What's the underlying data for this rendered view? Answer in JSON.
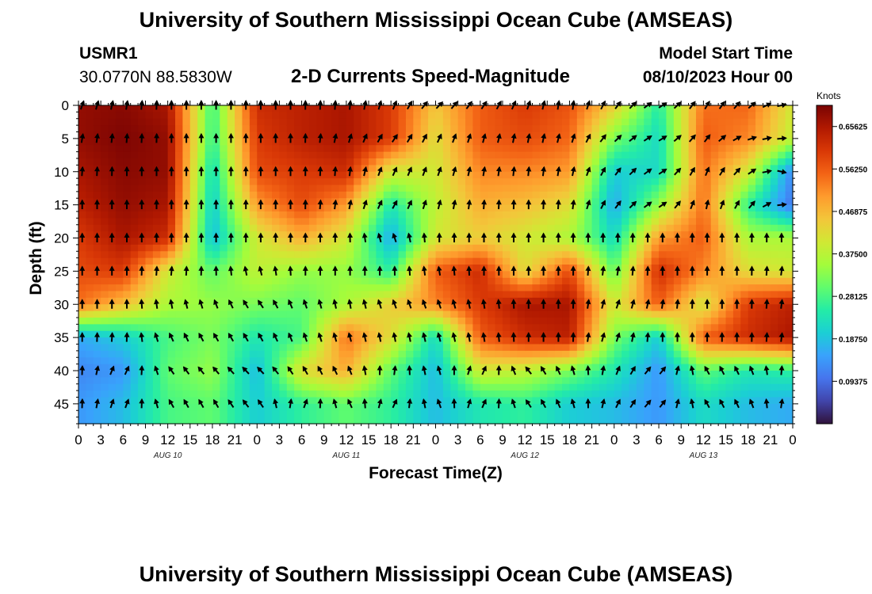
{
  "header": {
    "title": "University of Southern Mississippi Ocean Cube (AMSEAS)",
    "station_id": "USMR1",
    "coords": "30.0770N  88.5830W",
    "subtitle": "2-D Currents Speed-Magnitude",
    "model_start_label": "Model Start Time",
    "model_start_value": "08/10/2023 Hour 00"
  },
  "footer": {
    "title": "University of Southern Mississippi Ocean Cube (AMSEAS)"
  },
  "colors": {
    "palette": [
      "#30123b",
      "#4145ab",
      "#4675ed",
      "#39a2fc",
      "#1bcfd4",
      "#24eca6",
      "#61fc6c",
      "#a4fc3b",
      "#d1e834",
      "#f3c63a",
      "#fe9b2d",
      "#f36315",
      "#d93806",
      "#b11901",
      "#7a0403"
    ]
  },
  "chart_data": {
    "type": "heatmap",
    "title": "2-D Currents Speed-Magnitude",
    "xlabel": "Forecast Time(Z)",
    "ylabel": "Depth (ft)",
    "x_range_hours": [
      0,
      96
    ],
    "y_range_ft": [
      0,
      48
    ],
    "x_tick_hours": [
      0,
      3,
      6,
      9,
      12,
      15,
      18,
      21,
      24,
      27,
      30,
      33,
      36,
      39,
      42,
      45,
      48,
      51,
      54,
      57,
      60,
      63,
      66,
      69,
      72,
      75,
      78,
      81,
      84,
      87,
      90,
      93,
      96
    ],
    "x_tick_labels": [
      "0",
      "3",
      "6",
      "9",
      "12",
      "15",
      "18",
      "21",
      "0",
      "3",
      "6",
      "9",
      "12",
      "15",
      "18",
      "21",
      "0",
      "3",
      "6",
      "9",
      "12",
      "15",
      "18",
      "21",
      "0",
      "3",
      "6",
      "9",
      "12",
      "15",
      "18",
      "21",
      "0"
    ],
    "y_ticks": [
      0,
      5,
      10,
      15,
      20,
      25,
      30,
      35,
      40,
      45
    ],
    "y_tick_labels": [
      "0",
      "5",
      "10",
      "15",
      "20",
      "25",
      "30",
      "35",
      "40",
      "45"
    ],
    "day_labels": [
      {
        "hour": 12,
        "label": "AUG 10"
      },
      {
        "hour": 36,
        "label": "AUG 11"
      },
      {
        "hour": 60,
        "label": "AUG 12"
      },
      {
        "hour": 84,
        "label": "AUG 13"
      }
    ],
    "colorbar": {
      "units": "Knots",
      "min": 0.0,
      "max": 0.703,
      "tick_values": [
        0.09375,
        0.1875,
        0.28125,
        0.375,
        0.46875,
        0.5625,
        0.65625
      ],
      "tick_labels": [
        "0.09375",
        "0.18750",
        "0.28125",
        "0.37500",
        "0.46875",
        "0.56250",
        "0.65625"
      ]
    },
    "vector_rows_depth_ft": [
      0,
      5,
      10,
      15,
      20,
      25,
      30,
      35,
      40,
      45
    ],
    "vector_time_step_hours": 2,
    "speed_knots_every_6h_by_depth": [
      [
        0.68,
        0.69,
        0.66,
        0.27,
        0.62,
        0.64,
        0.66,
        0.6,
        0.45,
        0.56,
        0.6,
        0.57,
        0.44,
        0.25,
        0.54,
        0.55,
        0.4
      ],
      [
        0.68,
        0.7,
        0.68,
        0.26,
        0.6,
        0.64,
        0.66,
        0.6,
        0.42,
        0.56,
        0.58,
        0.55,
        0.32,
        0.22,
        0.56,
        0.52,
        0.38
      ],
      [
        0.66,
        0.69,
        0.68,
        0.22,
        0.58,
        0.6,
        0.62,
        0.4,
        0.4,
        0.52,
        0.52,
        0.5,
        0.2,
        0.22,
        0.54,
        0.4,
        0.12
      ],
      [
        0.64,
        0.68,
        0.66,
        0.2,
        0.5,
        0.58,
        0.5,
        0.24,
        0.38,
        0.48,
        0.46,
        0.42,
        0.16,
        0.34,
        0.54,
        0.26,
        0.1
      ],
      [
        0.6,
        0.66,
        0.62,
        0.18,
        0.4,
        0.48,
        0.4,
        0.16,
        0.4,
        0.44,
        0.4,
        0.36,
        0.22,
        0.5,
        0.56,
        0.36,
        0.36
      ],
      [
        0.58,
        0.6,
        0.4,
        0.3,
        0.38,
        0.34,
        0.34,
        0.26,
        0.56,
        0.62,
        0.42,
        0.58,
        0.3,
        0.62,
        0.52,
        0.42,
        0.4
      ],
      [
        0.54,
        0.46,
        0.36,
        0.34,
        0.32,
        0.3,
        0.36,
        0.44,
        0.52,
        0.6,
        0.66,
        0.66,
        0.4,
        0.56,
        0.4,
        0.6,
        0.64
      ],
      [
        0.16,
        0.2,
        0.28,
        0.32,
        0.24,
        0.28,
        0.54,
        0.42,
        0.22,
        0.56,
        0.62,
        0.64,
        0.32,
        0.2,
        0.56,
        0.62,
        0.66
      ],
      [
        0.12,
        0.14,
        0.3,
        0.34,
        0.18,
        0.42,
        0.48,
        0.3,
        0.18,
        0.4,
        0.38,
        0.32,
        0.24,
        0.14,
        0.3,
        0.24,
        0.26
      ],
      [
        0.14,
        0.18,
        0.28,
        0.3,
        0.2,
        0.26,
        0.3,
        0.26,
        0.18,
        0.24,
        0.26,
        0.2,
        0.18,
        0.14,
        0.22,
        0.18,
        0.16
      ]
    ],
    "direction_deg_every_6h_by_depth": [
      [
        20,
        10,
        0,
        0,
        0,
        0,
        5,
        20,
        45,
        35,
        20,
        5,
        35,
        60,
        30,
        45,
        90
      ],
      [
        10,
        5,
        0,
        0,
        0,
        0,
        15,
        35,
        25,
        15,
        10,
        15,
        45,
        60,
        35,
        70,
        90
      ],
      [
        5,
        0,
        0,
        0,
        0,
        0,
        5,
        25,
        20,
        10,
        5,
        10,
        35,
        60,
        20,
        50,
        120
      ],
      [
        0,
        0,
        0,
        0,
        0,
        0,
        10,
        30,
        15,
        5,
        0,
        5,
        35,
        60,
        10,
        35,
        100
      ],
      [
        0,
        0,
        0,
        0,
        0,
        0,
        0,
        -20,
        0,
        0,
        0,
        0,
        0,
        0,
        0,
        0,
        0
      ],
      [
        0,
        0,
        5,
        0,
        -15,
        0,
        0,
        0,
        -10,
        0,
        0,
        0,
        10,
        0,
        0,
        0,
        10
      ],
      [
        0,
        0,
        -10,
        -20,
        -35,
        -20,
        -10,
        -20,
        -20,
        -10,
        0,
        0,
        20,
        10,
        0,
        0,
        10
      ],
      [
        0,
        5,
        -25,
        -30,
        -30,
        -20,
        -15,
        -10,
        -15,
        -10,
        0,
        0,
        20,
        0,
        0,
        0,
        10
      ],
      [
        0,
        30,
        -35,
        -40,
        -45,
        -30,
        -25,
        10,
        -20,
        30,
        -40,
        -20,
        20,
        45,
        -30,
        -25,
        15
      ],
      [
        0,
        25,
        -30,
        -30,
        -40,
        25,
        -30,
        30,
        -25,
        30,
        -35,
        -20,
        25,
        45,
        -30,
        -25,
        20
      ]
    ]
  }
}
